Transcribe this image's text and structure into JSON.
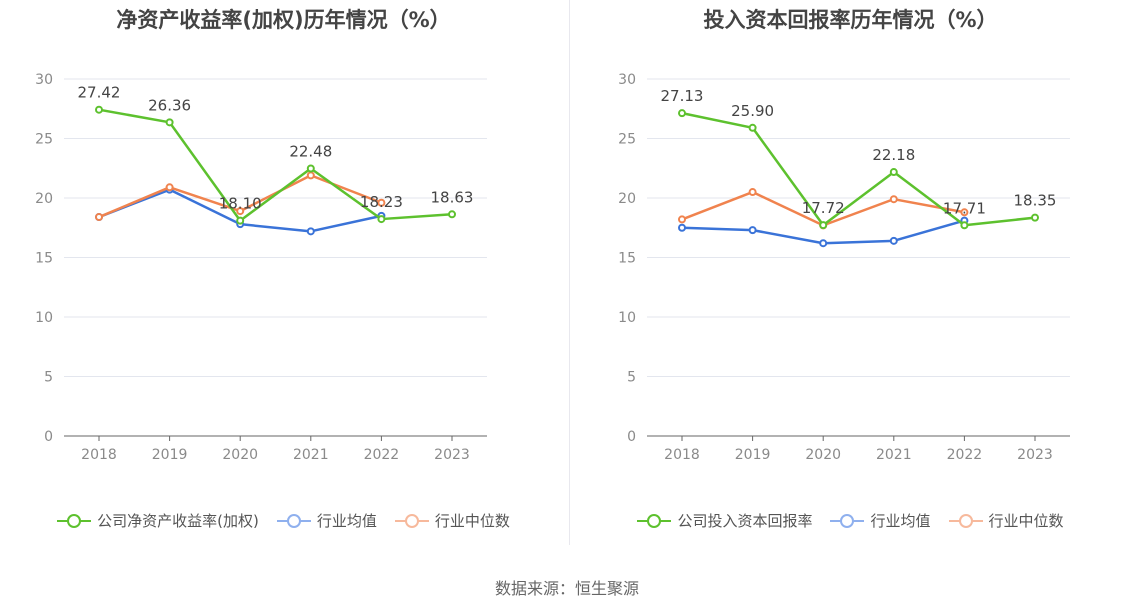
{
  "source": "数据来源：恒生聚源",
  "chart_data": [
    {
      "type": "line",
      "title": "净资产收益率(加权)历年情况（%）",
      "categories": [
        "2018",
        "2019",
        "2020",
        "2021",
        "2022",
        "2023"
      ],
      "ylim": [
        0,
        30
      ],
      "yticks": [
        0,
        5,
        10,
        15,
        20,
        25,
        30
      ],
      "grid": true,
      "legend_position": "bottom",
      "series": [
        {
          "name": "公司净资产收益率(加权)",
          "color": "#5dc12e",
          "values": [
            27.42,
            26.36,
            18.1,
            22.48,
            18.23,
            18.63
          ],
          "labeled": true
        },
        {
          "name": "行业均值",
          "color": "#3a73d8",
          "values": [
            18.4,
            20.7,
            17.8,
            17.2,
            18.5,
            null
          ],
          "labeled": false
        },
        {
          "name": "行业中位数",
          "color": "#f0834e",
          "values": [
            18.4,
            20.9,
            18.9,
            21.9,
            19.6,
            null
          ],
          "labeled": false
        }
      ]
    },
    {
      "type": "line",
      "title": "投入资本回报率历年情况（%）",
      "categories": [
        "2018",
        "2019",
        "2020",
        "2021",
        "2022",
        "2023"
      ],
      "ylim": [
        0,
        30
      ],
      "yticks": [
        0,
        5,
        10,
        15,
        20,
        25,
        30
      ],
      "grid": true,
      "legend_position": "bottom",
      "series": [
        {
          "name": "公司投入资本回报率",
          "color": "#5dc12e",
          "values": [
            27.13,
            25.9,
            17.72,
            22.18,
            17.71,
            18.35
          ],
          "labeled": true
        },
        {
          "name": "行业均值",
          "color": "#3a73d8",
          "values": [
            17.5,
            17.3,
            16.2,
            16.4,
            18.1,
            null
          ],
          "labeled": false
        },
        {
          "name": "行业中位数",
          "color": "#f0834e",
          "values": [
            18.2,
            20.5,
            17.7,
            19.9,
            18.8,
            null
          ],
          "labeled": false
        }
      ]
    }
  ],
  "legend_colors": {
    "company": "#5dc12e",
    "avg": "#8fb0ee",
    "median": "#f7b99c"
  }
}
